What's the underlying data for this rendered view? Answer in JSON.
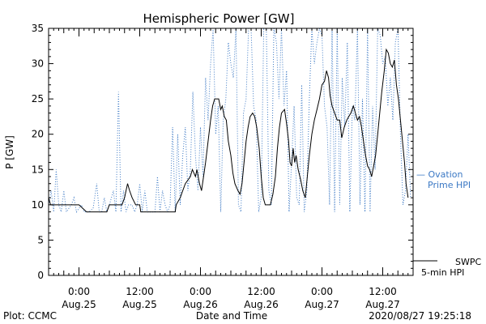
{
  "colors": {
    "swpc": "#000000",
    "ovation": "#3b78c4",
    "axis": "#000000",
    "background": "#ffffff"
  },
  "footer": {
    "plot_credit": "Plot: CCMC",
    "timestamp": "2020/08/27 19:25:18"
  },
  "chart_data": {
    "type": "line",
    "title": "Hemispheric Power [GW]",
    "xlabel": "Date and Time",
    "ylabel": "P [GW]",
    "x_units": "hours since 2020-08-24 18:00 UTC (axis printed as date/time)",
    "xlim": [
      0,
      72
    ],
    "ylim": [
      0,
      35
    ],
    "yticks": [
      0,
      5,
      10,
      15,
      20,
      25,
      30,
      35
    ],
    "xticks": [
      {
        "x": 6,
        "time": "0:00",
        "date": "Aug.25"
      },
      {
        "x": 18,
        "time": "12:00",
        "date": "Aug.25"
      },
      {
        "x": 30,
        "time": "0:00",
        "date": "Aug.26"
      },
      {
        "x": 42,
        "time": "12:00",
        "date": "Aug.26"
      },
      {
        "x": 54,
        "time": "0:00",
        "date": "Aug.27"
      },
      {
        "x": 66,
        "time": "12:00",
        "date": "Aug.27"
      }
    ],
    "legend_position": "right",
    "series": [
      {
        "name_line1": "SWPC",
        "name_line2": "5-min HPI",
        "style": "solid",
        "color": "#000000",
        "points": [
          [
            0,
            11
          ],
          [
            0.4,
            10
          ],
          [
            3,
            10
          ],
          [
            6,
            10
          ],
          [
            7.5,
            9
          ],
          [
            11.5,
            9
          ],
          [
            12,
            10
          ],
          [
            14.5,
            10
          ],
          [
            15,
            11
          ],
          [
            15.3,
            12
          ],
          [
            15.6,
            13
          ],
          [
            16,
            12
          ],
          [
            16.5,
            11
          ],
          [
            17.2,
            10
          ],
          [
            18,
            10
          ],
          [
            18.2,
            9
          ],
          [
            25,
            9
          ],
          [
            25.2,
            10
          ],
          [
            26,
            11
          ],
          [
            26.5,
            12
          ],
          [
            27,
            13
          ],
          [
            28,
            14
          ],
          [
            28.4,
            15
          ],
          [
            29,
            14
          ],
          [
            29.3,
            15
          ],
          [
            29.8,
            13
          ],
          [
            30.2,
            12
          ],
          [
            30.6,
            14
          ],
          [
            31,
            16
          ],
          [
            31.5,
            19
          ],
          [
            32,
            22
          ],
          [
            32.4,
            24
          ],
          [
            32.8,
            25
          ],
          [
            33.6,
            25
          ],
          [
            34,
            23.5
          ],
          [
            34.3,
            24
          ],
          [
            34.7,
            22.5
          ],
          [
            35.1,
            22
          ],
          [
            35.5,
            19
          ],
          [
            36,
            17
          ],
          [
            36.4,
            14.5
          ],
          [
            36.8,
            13
          ],
          [
            37.4,
            12
          ],
          [
            37.8,
            11.5
          ],
          [
            38.2,
            13
          ],
          [
            38.6,
            16
          ],
          [
            39,
            19
          ],
          [
            39.4,
            21
          ],
          [
            39.8,
            22.5
          ],
          [
            40.3,
            23
          ],
          [
            40.7,
            22.5
          ],
          [
            41.1,
            21
          ],
          [
            41.6,
            18
          ],
          [
            42,
            14
          ],
          [
            42.4,
            11
          ],
          [
            42.8,
            10
          ],
          [
            43.8,
            10
          ],
          [
            44.3,
            11.5
          ],
          [
            44.8,
            14
          ],
          [
            45.2,
            18
          ],
          [
            45.6,
            21
          ],
          [
            46,
            23
          ],
          [
            46.6,
            23.5
          ],
          [
            47,
            21.5
          ],
          [
            47.4,
            19
          ],
          [
            47.7,
            16
          ],
          [
            48,
            15.5
          ],
          [
            48.3,
            18
          ],
          [
            48.6,
            16
          ],
          [
            48.9,
            17
          ],
          [
            49.3,
            15
          ],
          [
            49.8,
            13.5
          ],
          [
            50.2,
            12
          ],
          [
            50.7,
            11
          ],
          [
            51.1,
            14
          ],
          [
            51.5,
            17
          ],
          [
            52,
            20
          ],
          [
            52.5,
            22
          ],
          [
            53,
            23.5
          ],
          [
            53.5,
            25
          ],
          [
            54,
            27
          ],
          [
            54.5,
            27.5
          ],
          [
            54.9,
            29
          ],
          [
            55.3,
            28
          ],
          [
            55.6,
            25.5
          ],
          [
            56,
            24
          ],
          [
            56.5,
            23
          ],
          [
            57,
            22
          ],
          [
            57.5,
            22
          ],
          [
            57.9,
            19.5
          ],
          [
            58.4,
            21
          ],
          [
            58.9,
            22
          ],
          [
            59.3,
            22.5
          ],
          [
            59.7,
            23
          ],
          [
            60.2,
            24
          ],
          [
            60.6,
            23
          ],
          [
            61,
            22
          ],
          [
            61.4,
            22.5
          ],
          [
            61.8,
            21
          ],
          [
            62.2,
            19
          ],
          [
            62.6,
            17
          ],
          [
            63,
            15.5
          ],
          [
            63.4,
            15
          ],
          [
            63.8,
            14
          ],
          [
            64.2,
            15.5
          ],
          [
            64.6,
            17
          ],
          [
            65,
            20
          ],
          [
            65.4,
            23
          ],
          [
            65.8,
            26
          ],
          [
            66.3,
            29
          ],
          [
            66.7,
            32
          ],
          [
            67.1,
            31.5
          ],
          [
            67.5,
            30
          ],
          [
            67.9,
            29.5
          ],
          [
            68.3,
            30.5
          ],
          [
            68.7,
            27
          ],
          [
            69.1,
            25
          ],
          [
            69.5,
            22
          ],
          [
            69.9,
            19
          ],
          [
            70.3,
            16
          ],
          [
            70.6,
            13
          ],
          [
            71,
            11
          ]
        ]
      },
      {
        "name_line1": "— Ovation",
        "name_line2": "Prime HPI",
        "style": "dotted",
        "color": "#3b78c4",
        "points": [
          [
            0,
            10
          ],
          [
            0.5,
            12
          ],
          [
            1,
            9
          ],
          [
            1.5,
            15
          ],
          [
            2,
            10
          ],
          [
            2.5,
            9
          ],
          [
            3,
            12
          ],
          [
            3.5,
            9
          ],
          [
            4.5,
            10
          ],
          [
            5,
            11
          ],
          [
            5.5,
            9
          ],
          [
            6.5,
            10
          ],
          [
            7,
            9
          ],
          [
            8,
            9
          ],
          [
            8.8,
            9.5
          ],
          [
            9.5,
            13
          ],
          [
            10,
            9
          ],
          [
            10.5,
            9
          ],
          [
            11,
            11
          ],
          [
            11.5,
            9
          ],
          [
            12,
            10
          ],
          [
            12.8,
            12
          ],
          [
            13.3,
            9
          ],
          [
            13.8,
            26
          ],
          [
            14.3,
            9
          ],
          [
            14.8,
            12
          ],
          [
            15.3,
            9
          ],
          [
            15.8,
            10
          ],
          [
            16.5,
            10
          ],
          [
            17,
            9
          ],
          [
            17.5,
            10
          ],
          [
            18,
            13
          ],
          [
            18.5,
            9
          ],
          [
            19,
            12
          ],
          [
            19.5,
            9
          ],
          [
            20,
            9
          ],
          [
            21,
            9
          ],
          [
            21.5,
            14
          ],
          [
            22,
            9
          ],
          [
            22.5,
            12
          ],
          [
            23,
            10
          ],
          [
            23.5,
            9
          ],
          [
            24,
            10
          ],
          [
            24.5,
            21
          ],
          [
            25,
            9
          ],
          [
            25.5,
            20
          ],
          [
            26,
            10
          ],
          [
            26.5,
            17
          ],
          [
            27,
            21
          ],
          [
            27.5,
            12
          ],
          [
            28,
            15
          ],
          [
            28.5,
            26
          ],
          [
            29,
            17
          ],
          [
            29.5,
            12
          ],
          [
            30,
            21
          ],
          [
            30.5,
            14
          ],
          [
            31,
            28
          ],
          [
            31.5,
            22
          ],
          [
            32,
            30
          ],
          [
            32.5,
            35
          ],
          [
            33,
            20
          ],
          [
            33.5,
            24
          ],
          [
            34,
            9
          ],
          [
            34.5,
            22
          ],
          [
            35,
            25
          ],
          [
            35.5,
            33
          ],
          [
            36,
            30
          ],
          [
            36.5,
            28
          ],
          [
            37,
            35
          ],
          [
            37.5,
            10
          ],
          [
            38,
            9
          ],
          [
            38.5,
            23
          ],
          [
            39,
            25
          ],
          [
            39.5,
            35
          ],
          [
            40,
            35
          ],
          [
            40.5,
            24
          ],
          [
            41,
            22
          ],
          [
            41.5,
            9
          ],
          [
            42,
            11
          ],
          [
            42.5,
            35
          ],
          [
            43,
            35
          ],
          [
            43.5,
            12
          ],
          [
            44,
            10
          ],
          [
            44.5,
            35
          ],
          [
            45,
            33
          ],
          [
            45.5,
            25
          ],
          [
            46,
            35
          ],
          [
            46.5,
            24
          ],
          [
            47,
            29
          ],
          [
            47.5,
            9
          ],
          [
            48,
            16
          ],
          [
            48.5,
            24
          ],
          [
            49,
            11
          ],
          [
            49.5,
            10
          ],
          [
            50,
            27
          ],
          [
            50.5,
            9
          ],
          [
            51,
            12
          ],
          [
            51.5,
            25
          ],
          [
            52,
            35
          ],
          [
            52.5,
            30
          ],
          [
            53,
            33
          ],
          [
            53.5,
            35
          ],
          [
            54,
            34
          ],
          [
            54.5,
            24
          ],
          [
            55,
            21
          ],
          [
            55.5,
            10
          ],
          [
            56,
            35
          ],
          [
            56.5,
            9
          ],
          [
            57,
            35
          ],
          [
            57.5,
            10
          ],
          [
            58,
            28
          ],
          [
            58.5,
            21
          ],
          [
            59,
            33
          ],
          [
            59.5,
            9
          ],
          [
            60,
            24
          ],
          [
            60.5,
            22
          ],
          [
            61,
            35
          ],
          [
            61.5,
            10
          ],
          [
            62,
            25
          ],
          [
            62.5,
            9
          ],
          [
            63,
            35
          ],
          [
            63.5,
            9
          ],
          [
            64,
            24
          ],
          [
            64.5,
            15
          ],
          [
            65,
            35
          ],
          [
            65.5,
            34
          ],
          [
            66,
            30
          ],
          [
            66.5,
            31
          ],
          [
            67,
            24
          ],
          [
            67.5,
            28
          ],
          [
            68,
            22
          ],
          [
            68.5,
            33
          ],
          [
            69,
            35
          ],
          [
            69.5,
            20
          ],
          [
            70,
            10
          ],
          [
            70.5,
            12
          ],
          [
            71,
            20
          ],
          [
            71.5,
            11
          ]
        ]
      }
    ]
  }
}
